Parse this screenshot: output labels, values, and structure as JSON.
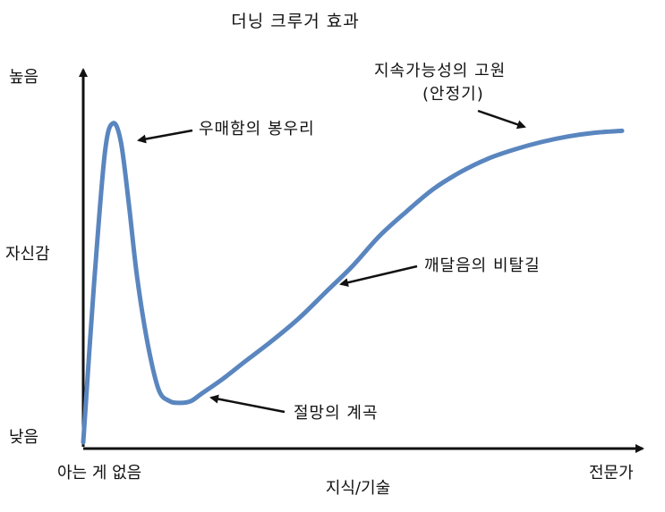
{
  "chart_data": {
    "type": "line",
    "title": "더닝 크루거 효과",
    "xlabel": "지식/기술",
    "ylabel": "자신감",
    "x_tick_labels": [
      "아는 게 없음",
      "전문가"
    ],
    "y_tick_labels": [
      "낮음",
      "높음"
    ],
    "xlim": [
      0,
      100
    ],
    "ylim": [
      0,
      100
    ],
    "grid": false,
    "legend": "none",
    "line_color": "#5a86bf",
    "series": [
      {
        "x": [
          0,
          2,
          4,
          5.5,
          7,
          8.5,
          10,
          12,
          14,
          16,
          18,
          20,
          22,
          26,
          30,
          35,
          40,
          45,
          50,
          55,
          60,
          65,
          70,
          75,
          80,
          85,
          90,
          95,
          100
        ],
        "y": [
          0,
          42,
          77,
          85,
          80,
          63,
          44,
          26,
          14,
          11,
          10.5,
          11,
          13,
          17,
          21.5,
          27,
          33,
          40,
          47,
          55,
          61.5,
          67.5,
          72,
          75.5,
          78,
          80,
          81.5,
          82.5,
          83
        ]
      }
    ],
    "annotations": [
      {
        "text": "우매함의 봉우리",
        "x": 5.5,
        "y": 85
      },
      {
        "text": "절망의 계곡",
        "x": 18,
        "y": 10.5
      },
      {
        "text": "깨달음의 비탈길",
        "x": 46,
        "y": 42
      },
      {
        "text": "지속가능성의 고원",
        "x": 78,
        "y": 79.5
      },
      {
        "text": "(안정기)",
        "x": 78,
        "y": 79.5
      }
    ]
  }
}
